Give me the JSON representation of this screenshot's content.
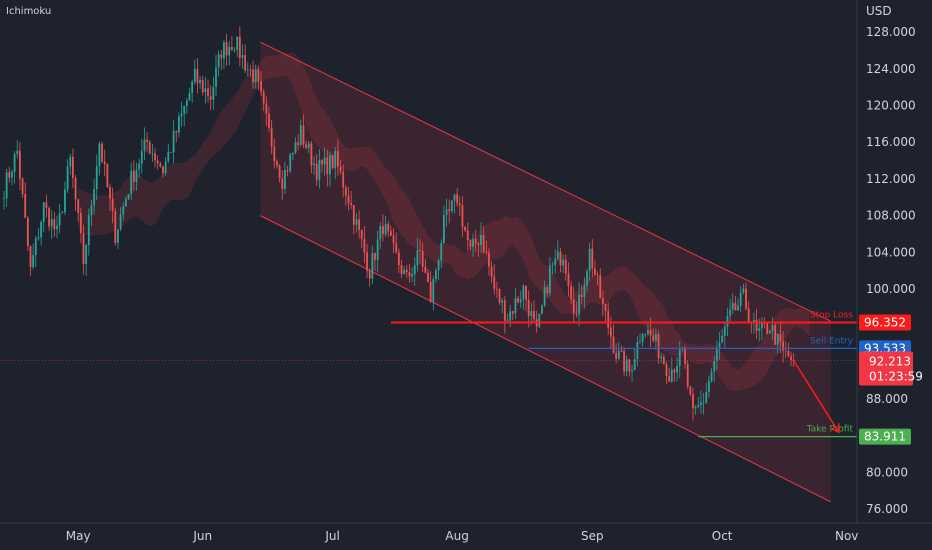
{
  "indicator": "Ichimoku",
  "currency": "USD",
  "colors": {
    "background": "#1e222d",
    "up": "#26a69a",
    "down": "#ef5350",
    "channel": "#f23645",
    "stop": "#ff1a1a",
    "entry": "#1e64c8",
    "profit": "#4caf50",
    "current": "#f23645"
  },
  "chart_data": {
    "type": "candlestick",
    "ylim": [
      74.5,
      131.5
    ],
    "y_ticks": [
      "128.000",
      "124.000",
      "120.000",
      "116.000",
      "112.000",
      "108.000",
      "104.000",
      "100.000",
      "88.000",
      "80.000",
      "76.000"
    ],
    "y_tick_values": [
      128,
      124,
      120,
      116,
      112,
      108,
      104,
      100,
      88,
      80,
      76
    ],
    "x_ticks": [
      "May",
      "Jun",
      "Jul",
      "Aug",
      "Sep",
      "Oct",
      "Nov"
    ],
    "x_tick_index": [
      28,
      75,
      124,
      171,
      222,
      271,
      318
    ],
    "price_path": [
      [
        0,
        111
      ],
      [
        5,
        115
      ],
      [
        10,
        102
      ],
      [
        15,
        109
      ],
      [
        20,
        106
      ],
      [
        25,
        114
      ],
      [
        30,
        103
      ],
      [
        36,
        116
      ],
      [
        42,
        106
      ],
      [
        48,
        112
      ],
      [
        54,
        116
      ],
      [
        60,
        113
      ],
      [
        66,
        118
      ],
      [
        72,
        123
      ],
      [
        78,
        121
      ],
      [
        82,
        126
      ],
      [
        87,
        127
      ],
      [
        92,
        124
      ],
      [
        95,
        123
      ],
      [
        100,
        117
      ],
      [
        105,
        112
      ],
      [
        112,
        117
      ],
      [
        118,
        113
      ],
      [
        125,
        114
      ],
      [
        130,
        110
      ],
      [
        133,
        107
      ],
      [
        138,
        102
      ],
      [
        143,
        107
      ],
      [
        147,
        104
      ],
      [
        152,
        101
      ],
      [
        157,
        104
      ],
      [
        161,
        99
      ],
      [
        166,
        107
      ],
      [
        171,
        110
      ],
      [
        176,
        104
      ],
      [
        180,
        106
      ],
      [
        185,
        100
      ],
      [
        190,
        97
      ],
      [
        196,
        100
      ],
      [
        201,
        95
      ],
      [
        206,
        102
      ],
      [
        211,
        104
      ],
      [
        216,
        97
      ],
      [
        221,
        104
      ],
      [
        226,
        98
      ],
      [
        231,
        93
      ],
      [
        236,
        91
      ],
      [
        241,
        96
      ],
      [
        246,
        94
      ],
      [
        251,
        91
      ],
      [
        256,
        93
      ],
      [
        260,
        86
      ],
      [
        264,
        88
      ],
      [
        269,
        93
      ],
      [
        274,
        97
      ],
      [
        279,
        99
      ],
      [
        284,
        95
      ],
      [
        289,
        96
      ],
      [
        294,
        93
      ],
      [
        298,
        92.2
      ]
    ],
    "channel": {
      "start_index": 96,
      "end_index": 312,
      "upper": [
        126.9,
        96.5
      ],
      "lower": [
        108.0,
        76.8
      ]
    },
    "levels": [
      {
        "name": "Stop Loss",
        "value": 96.352,
        "label": "96.352",
        "start_index": 146
      },
      {
        "name": "Sell Entry",
        "value": 93.533,
        "label": "93.533",
        "start_index": 198
      },
      {
        "name": "Take Profit",
        "value": 83.911,
        "label": "83.911",
        "start_index": 262
      }
    ],
    "current_price": {
      "value": 92.213,
      "label": "92.213",
      "countdown": "01:23:59"
    },
    "forecast": {
      "from": [
        298,
        92.2
      ],
      "to": [
        315,
        84.4
      ]
    }
  }
}
